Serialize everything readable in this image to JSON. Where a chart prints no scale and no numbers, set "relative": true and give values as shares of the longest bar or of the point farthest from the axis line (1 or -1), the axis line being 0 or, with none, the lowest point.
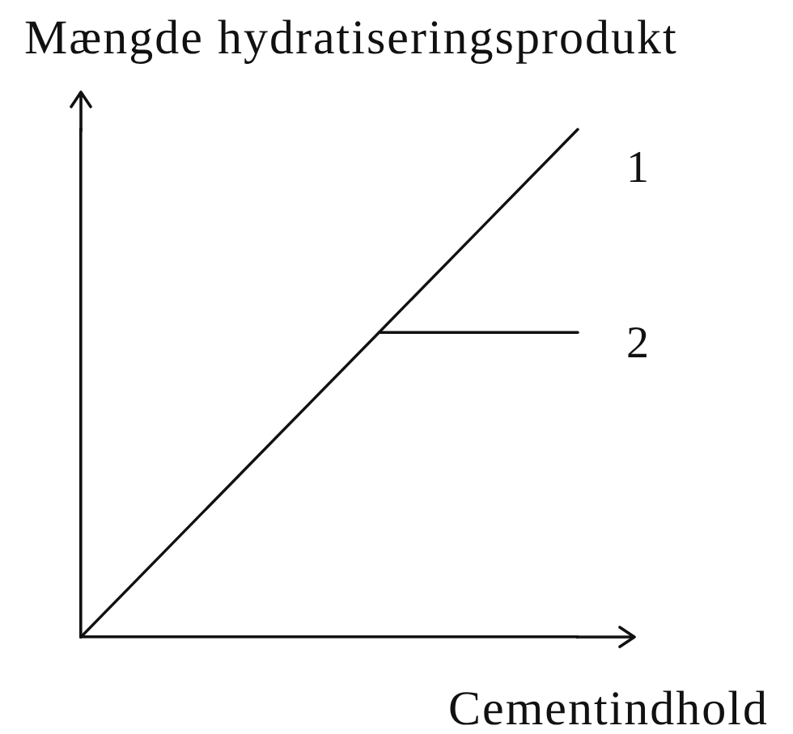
{
  "chart_data": {
    "type": "line",
    "ylabel": "Mængde hydratiseringsprodukt",
    "xlabel": "Cementindhold",
    "categories": [
      null,
      null,
      null,
      null,
      null,
      null
    ],
    "relative": true,
    "series": [
      {
        "name": "1",
        "color": "#111111",
        "values": [
          0,
          0.2,
          0.4,
          0.6,
          0.8,
          1
        ]
      },
      {
        "name": "2",
        "color": "#111111",
        "values": [
          null,
          null,
          null,
          0.6,
          0.6,
          0.6
        ]
      }
    ],
    "grid": false,
    "legend": false,
    "marker": "none",
    "line_style": "solid"
  }
}
